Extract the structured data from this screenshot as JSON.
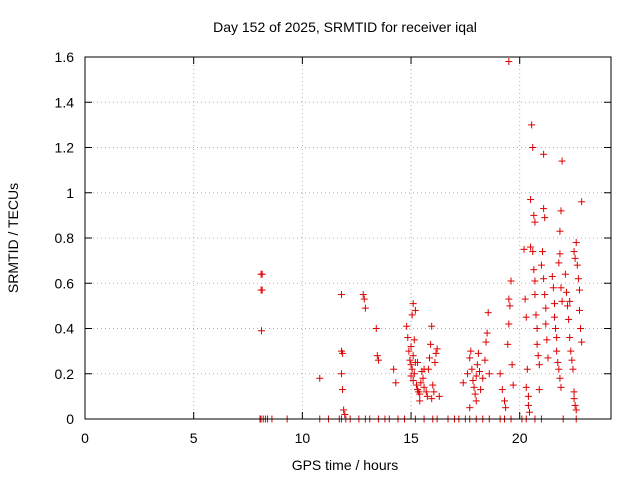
{
  "chart_data": {
    "type": "scatter",
    "title": "Day 152 of 2025, SRMTID for receiver iqal",
    "xlabel": "GPS time / hours",
    "ylabel": "SRMTID / TECUs",
    "xlim": [
      0,
      24.2
    ],
    "ylim": [
      0,
      1.6
    ],
    "xticks": [
      0,
      5,
      10,
      15,
      20
    ],
    "xtick_labels": [
      "0",
      "5",
      "10",
      "15",
      "20"
    ],
    "yticks": [
      0,
      0.2,
      0.4,
      0.6,
      0.8,
      1,
      1.2,
      1.4,
      1.6
    ],
    "ytick_labels": [
      "0",
      "0.2",
      "0.4",
      "0.6",
      "0.8",
      "1",
      "1.2",
      "1.4",
      "1.6"
    ],
    "grid": true,
    "marker": "+",
    "marker_color": "#dd0000",
    "series": [
      {
        "name": "SRMTID",
        "points": [
          [
            8.05,
            0
          ],
          [
            8.1,
            0
          ],
          [
            8.2,
            0
          ],
          [
            8.3,
            0
          ],
          [
            8.4,
            0
          ],
          [
            8.6,
            0
          ],
          [
            9.3,
            0
          ],
          [
            10.8,
            0
          ],
          [
            11.2,
            0
          ],
          [
            11.7,
            0
          ],
          [
            11.8,
            0
          ],
          [
            12.0,
            0
          ],
          [
            12.2,
            0
          ],
          [
            12.6,
            0
          ],
          [
            12.9,
            0
          ],
          [
            13.1,
            0
          ],
          [
            13.5,
            0
          ],
          [
            13.8,
            0
          ],
          [
            14.0,
            0
          ],
          [
            14.4,
            0
          ],
          [
            14.7,
            0
          ],
          [
            15.2,
            0
          ],
          [
            15.6,
            0
          ],
          [
            16.0,
            0
          ],
          [
            16.2,
            0
          ],
          [
            16.7,
            0
          ],
          [
            17.0,
            0
          ],
          [
            17.2,
            0
          ],
          [
            17.5,
            0
          ],
          [
            17.7,
            0
          ],
          [
            18.0,
            0
          ],
          [
            18.3,
            0
          ],
          [
            18.6,
            0
          ],
          [
            19.1,
            0
          ],
          [
            19.3,
            0
          ],
          [
            19.6,
            0
          ],
          [
            20.1,
            0
          ],
          [
            20.3,
            0
          ],
          [
            20.7,
            0
          ],
          [
            21.0,
            0
          ],
          [
            22.0,
            0
          ],
          [
            22.6,
            0
          ],
          [
            8.1,
            0.64
          ],
          [
            8.15,
            0.64
          ],
          [
            8.1,
            0.57
          ],
          [
            8.15,
            0.57
          ],
          [
            8.12,
            0.39
          ],
          [
            10.8,
            0.18
          ],
          [
            11.8,
            0.55
          ],
          [
            11.8,
            0.3
          ],
          [
            11.85,
            0.29
          ],
          [
            11.8,
            0.2
          ],
          [
            11.85,
            0.13
          ],
          [
            11.9,
            0.04
          ],
          [
            11.95,
            0.02
          ],
          [
            12.8,
            0.55
          ],
          [
            12.85,
            0.53
          ],
          [
            12.9,
            0.49
          ],
          [
            13.4,
            0.4
          ],
          [
            13.45,
            0.28
          ],
          [
            13.5,
            0.26
          ],
          [
            14.2,
            0.22
          ],
          [
            14.3,
            0.16
          ],
          [
            14.8,
            0.41
          ],
          [
            14.85,
            0.36
          ],
          [
            14.9,
            0.3
          ],
          [
            14.95,
            0.26
          ],
          [
            15.0,
            0.24
          ],
          [
            15.05,
            0.22
          ],
          [
            15.0,
            0.19
          ],
          [
            15.1,
            0.17
          ],
          [
            15.15,
            0.2
          ],
          [
            15.2,
            0.25
          ],
          [
            15.1,
            0.28
          ],
          [
            15.0,
            0.32
          ],
          [
            15.05,
            0.46
          ],
          [
            15.1,
            0.51
          ],
          [
            15.2,
            0.48
          ],
          [
            15.25,
            0.15
          ],
          [
            15.3,
            0.13
          ],
          [
            15.35,
            0.12
          ],
          [
            15.4,
            0.11
          ],
          [
            15.45,
            0.16
          ],
          [
            15.5,
            0.21
          ],
          [
            15.55,
            0.18
          ],
          [
            15.6,
            0.14
          ],
          [
            15.7,
            0.12
          ],
          [
            15.75,
            0.1
          ],
          [
            15.8,
            0.22
          ],
          [
            15.85,
            0.27
          ],
          [
            15.9,
            0.33
          ],
          [
            15.95,
            0.41
          ],
          [
            16.0,
            0.15
          ],
          [
            16.05,
            0.12
          ],
          [
            16.1,
            0.25
          ],
          [
            16.15,
            0.29
          ],
          [
            16.2,
            0.31
          ],
          [
            16.3,
            0.1
          ],
          [
            15.95,
            0.09
          ],
          [
            15.6,
            0.22
          ],
          [
            15.3,
            0.25
          ],
          [
            15.15,
            0.35
          ],
          [
            15.4,
            0.08
          ],
          [
            17.4,
            0.16
          ],
          [
            17.6,
            0.2
          ],
          [
            17.7,
            0.27
          ],
          [
            17.75,
            0.3
          ],
          [
            17.8,
            0.22
          ],
          [
            17.85,
            0.17
          ],
          [
            17.9,
            0.14
          ],
          [
            17.95,
            0.11
          ],
          [
            18.0,
            0.19
          ],
          [
            18.05,
            0.24
          ],
          [
            18.1,
            0.29
          ],
          [
            18.15,
            0.21
          ],
          [
            18.2,
            0.13
          ],
          [
            18.3,
            0.18
          ],
          [
            18.4,
            0.26
          ],
          [
            18.45,
            0.34
          ],
          [
            18.5,
            0.38
          ],
          [
            18.55,
            0.47
          ],
          [
            18.6,
            0.2
          ],
          [
            18.0,
            0.08
          ],
          [
            17.7,
            0.05
          ],
          [
            19.1,
            0.2
          ],
          [
            19.2,
            0.13
          ],
          [
            19.3,
            0.08
          ],
          [
            19.35,
            0.05
          ],
          [
            19.45,
            0.33
          ],
          [
            19.5,
            0.42
          ],
          [
            19.55,
            0.5
          ],
          [
            19.5,
            0.53
          ],
          [
            19.6,
            0.61
          ],
          [
            19.65,
            0.24
          ],
          [
            19.5,
            1.58
          ],
          [
            19.7,
            0.15
          ],
          [
            20.2,
            0.75
          ],
          [
            20.25,
            0.53
          ],
          [
            20.3,
            0.45
          ],
          [
            20.35,
            0.22
          ],
          [
            20.3,
            0.14
          ],
          [
            20.4,
            0.1
          ],
          [
            20.4,
            0.06
          ],
          [
            20.45,
            0.03
          ],
          [
            20.5,
            0.76
          ],
          [
            20.5,
            0.97
          ],
          [
            20.55,
            1.3
          ],
          [
            20.6,
            1.2
          ],
          [
            20.6,
            0.74
          ],
          [
            20.65,
            0.66
          ],
          [
            20.7,
            0.61
          ],
          [
            20.7,
            0.55
          ],
          [
            20.75,
            0.46
          ],
          [
            20.8,
            0.4
          ],
          [
            20.8,
            0.33
          ],
          [
            20.85,
            0.28
          ],
          [
            20.9,
            0.24
          ],
          [
            20.9,
            0.13
          ],
          [
            20.65,
            0.9
          ],
          [
            20.7,
            0.87
          ],
          [
            21.0,
            0.68
          ],
          [
            21.05,
            0.74
          ],
          [
            21.1,
            0.62
          ],
          [
            21.15,
            0.55
          ],
          [
            21.2,
            0.49
          ],
          [
            21.2,
            0.42
          ],
          [
            21.25,
            0.35
          ],
          [
            21.3,
            0.27
          ],
          [
            21.1,
            1.17
          ],
          [
            21.1,
            0.93
          ],
          [
            21.15,
            0.89
          ],
          [
            21.5,
            0.63
          ],
          [
            21.55,
            0.58
          ],
          [
            21.6,
            0.51
          ],
          [
            21.6,
            0.45
          ],
          [
            21.65,
            0.4
          ],
          [
            21.7,
            0.36
          ],
          [
            21.7,
            0.3
          ],
          [
            21.75,
            0.25
          ],
          [
            21.8,
            0.22
          ],
          [
            21.85,
            0.18
          ],
          [
            21.9,
            0.14
          ],
          [
            21.8,
            0.69
          ],
          [
            21.85,
            0.73
          ],
          [
            21.9,
            0.58
          ],
          [
            21.95,
            0.52
          ],
          [
            21.95,
            1.14
          ],
          [
            21.9,
            0.92
          ],
          [
            21.85,
            0.83
          ],
          [
            22.1,
            0.64
          ],
          [
            22.15,
            0.56
          ],
          [
            22.2,
            0.5
          ],
          [
            22.25,
            0.44
          ],
          [
            22.3,
            0.36
          ],
          [
            22.35,
            0.3
          ],
          [
            22.4,
            0.26
          ],
          [
            22.45,
            0.22
          ],
          [
            22.5,
            0.12
          ],
          [
            22.5,
            0.09
          ],
          [
            22.55,
            0.06
          ],
          [
            22.6,
            0.04
          ],
          [
            22.55,
            0.71
          ],
          [
            22.6,
            0.78
          ],
          [
            22.65,
            0.68
          ],
          [
            22.7,
            0.62
          ],
          [
            22.75,
            0.57
          ],
          [
            22.75,
            0.48
          ],
          [
            22.8,
            0.4
          ],
          [
            22.85,
            0.34
          ],
          [
            22.85,
            0.96
          ],
          [
            22.5,
            0.74
          ],
          [
            22.3,
            0.52
          ]
        ]
      }
    ]
  }
}
